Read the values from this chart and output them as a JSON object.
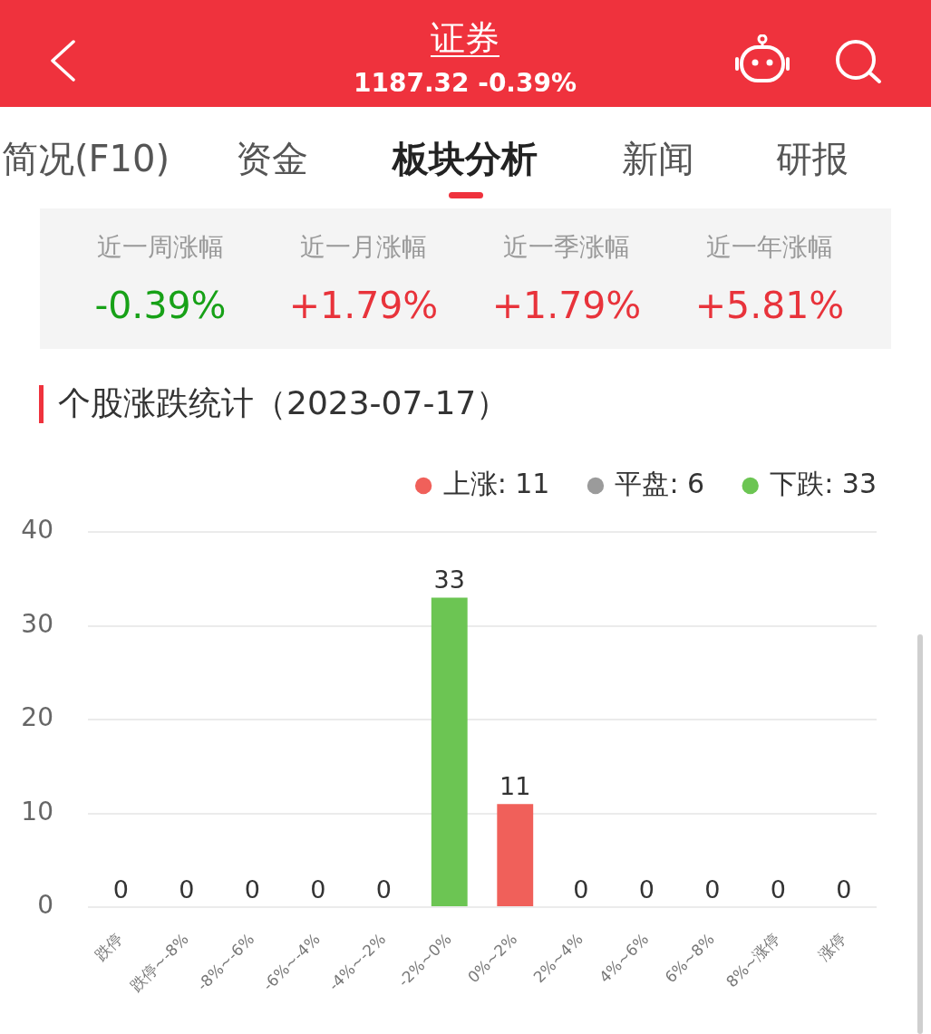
{
  "chart_data": {
    "type": "bar",
    "title": "个股涨跌统计（2023-07-17）",
    "annotations": [
      "证券",
      "1187.32 -0.39%",
      "简况(F10)",
      "资金",
      "板块分析",
      "新闻",
      "研报",
      "近一周涨幅",
      "-0.39%",
      "近一月涨幅",
      "+1.79%",
      "近一季涨幅",
      "+1.79%",
      "近一年涨幅",
      "+5.81%"
    ],
    "categories": [
      "跌停",
      "跌停~-8%",
      "-8%~-6%",
      "-6%~-4%",
      "-4%~-2%",
      "-2%~0%",
      "0%~2%",
      "2%~4%",
      "4%~6%",
      "6%~8%",
      "8%~涨停",
      "涨停"
    ],
    "series": [
      {
        "name": "上涨: 11",
        "color": "#f0605a",
        "values": [
          null,
          null,
          null,
          null,
          null,
          null,
          11,
          0,
          0,
          0,
          0,
          0
        ]
      },
      {
        "name": "平盘: 6",
        "color": "#9b9b9b",
        "values": [
          null,
          null,
          null,
          null,
          null,
          null,
          null,
          null,
          null,
          null,
          null,
          null
        ]
      },
      {
        "name": "下跌: 33",
        "color": "#6cc553",
        "values": [
          0,
          0,
          0,
          0,
          0,
          33,
          null,
          null,
          null,
          null,
          null,
          null
        ]
      }
    ],
    "ylim": [
      0,
      40
    ],
    "yticks": [
      0,
      10,
      20,
      30,
      40
    ],
    "grid": "y",
    "legend": "top right",
    "data_labels": true
  }
}
